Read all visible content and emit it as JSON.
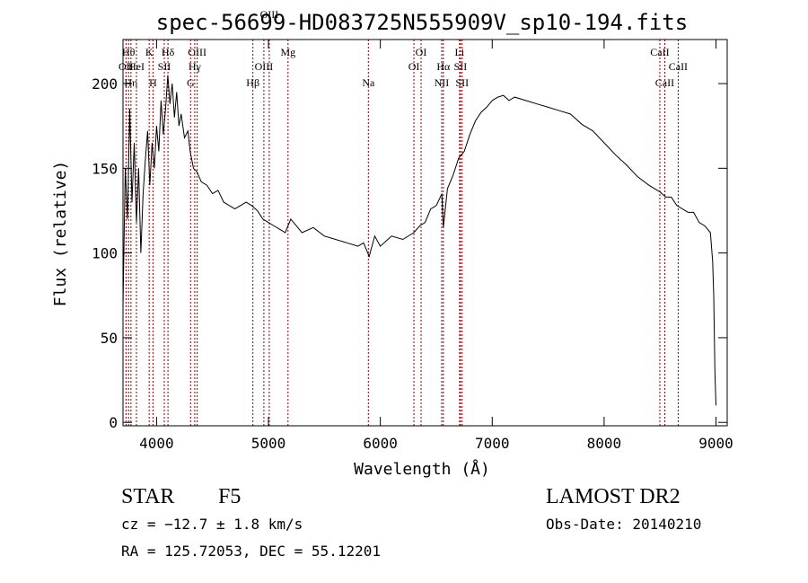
{
  "chart_data": {
    "type": "line",
    "title": "spec-56699-HD083725N555909V_sp10-194.fits",
    "xlabel": "Wavelength (Å)",
    "ylabel": "Flux (relative)",
    "xlim": [
      3700,
      9100
    ],
    "ylim": [
      -2,
      226
    ],
    "xticks": [
      4000,
      5000,
      6000,
      7000,
      8000,
      9000
    ],
    "yticks": [
      0,
      50,
      100,
      150,
      200
    ],
    "grid": false,
    "line_color": "#000000",
    "marker_color": "#8b0000",
    "series": [
      {
        "x": [
          3700,
          3720,
          3740,
          3760,
          3780,
          3800,
          3820,
          3840,
          3860,
          3880,
          3900,
          3920,
          3940,
          3960,
          3980,
          4000,
          4020,
          4040,
          4060,
          4080,
          4100,
          4120,
          4140,
          4160,
          4180,
          4200,
          4220,
          4250,
          4280,
          4300,
          4330,
          4360,
          4400,
          4450,
          4500,
          4550,
          4600,
          4650,
          4700,
          4750,
          4800,
          4850,
          4900,
          4950,
          5000,
          5050,
          5100,
          5150,
          5200,
          5300,
          5400,
          5500,
          5600,
          5700,
          5800,
          5850,
          5900,
          5950,
          6000,
          6100,
          6200,
          6300,
          6350,
          6400,
          6450,
          6500,
          6550,
          6563,
          6600,
          6650,
          6700,
          6750,
          6800,
          6850,
          6900,
          6950,
          7000,
          7050,
          7100,
          7150,
          7200,
          7300,
          7400,
          7500,
          7600,
          7700,
          7800,
          7900,
          8000,
          8100,
          8200,
          8300,
          8400,
          8500,
          8550,
          8600,
          8650,
          8700,
          8750,
          8800,
          8850,
          8900,
          8950,
          8970,
          8980,
          8990,
          9000
        ],
        "y": [
          68,
          150,
          120,
          185,
          130,
          165,
          118,
          150,
          100,
          135,
          155,
          172,
          140,
          165,
          150,
          175,
          160,
          190,
          170,
          185,
          205,
          188,
          200,
          180,
          195,
          175,
          182,
          168,
          172,
          160,
          150,
          148,
          142,
          140,
          135,
          137,
          130,
          128,
          126,
          128,
          130,
          128,
          125,
          120,
          118,
          116,
          114,
          112,
          120,
          112,
          115,
          110,
          108,
          106,
          104,
          106,
          98,
          110,
          104,
          110,
          108,
          112,
          116,
          118,
          126,
          128,
          135,
          115,
          138,
          146,
          156,
          160,
          170,
          178,
          183,
          186,
          190,
          192,
          193,
          190,
          192,
          190,
          188,
          186,
          184,
          182,
          176,
          172,
          165,
          158,
          152,
          145,
          140,
          136,
          133,
          133,
          128,
          126,
          124,
          124,
          118,
          116,
          112,
          95,
          75,
          30,
          10
        ]
      }
    ],
    "line_markers": [
      {
        "label": "Hθ",
        "x": 3750,
        "row": 1
      },
      {
        "label": "OII",
        "x": 3727,
        "row": 2
      },
      {
        "label": "Hη",
        "x": 3771,
        "row": 3
      },
      {
        "label": "HeI",
        "x": 3820,
        "row": 2
      },
      {
        "label": "K",
        "x": 3934,
        "row": 1
      },
      {
        "label": "H",
        "x": 3968,
        "row": 3
      },
      {
        "label": "Hδ",
        "x": 4102,
        "row": 1
      },
      {
        "label": "SII",
        "x": 4069,
        "row": 2
      },
      {
        "label": "OIII",
        "x": 4363,
        "row": 1
      },
      {
        "label": "Hγ",
        "x": 4341,
        "row": 2
      },
      {
        "label": "G",
        "x": 4304,
        "row": 3
      },
      {
        "label": "OIII",
        "x": 4959,
        "row": 2
      },
      {
        "label": "Hβ",
        "x": 4861,
        "row": 3
      },
      {
        "label": "Mg",
        "x": 5175,
        "row": 1
      },
      {
        "label": "OIII",
        "x": 5007,
        "row": 0
      },
      {
        "label": "Na",
        "x": 5893,
        "row": 3
      },
      {
        "label": "OI",
        "x": 6364,
        "row": 1
      },
      {
        "label": "OI",
        "x": 6300,
        "row": 2
      },
      {
        "label": "Hα",
        "x": 6563,
        "row": 2
      },
      {
        "label": "NII",
        "x": 6548,
        "row": 3
      },
      {
        "label": "Li",
        "x": 6708,
        "row": 1
      },
      {
        "label": "SII",
        "x": 6716,
        "row": 2
      },
      {
        "label": "SII",
        "x": 6731,
        "row": 3
      },
      {
        "label": "CaII",
        "x": 8498,
        "row": 1
      },
      {
        "label": "CaII",
        "x": 8662,
        "row": 2
      },
      {
        "label": "CaII",
        "x": 8542,
        "row": 3
      }
    ]
  },
  "info": {
    "object_class": "STAR",
    "subclass": "F5",
    "survey": "LAMOST DR2",
    "cz": "cz = −12.7 ± 1.8 km/s",
    "obs_date": "Obs-Date: 20140210",
    "coords": "RA = 125.72053, DEC =  55.12201"
  }
}
